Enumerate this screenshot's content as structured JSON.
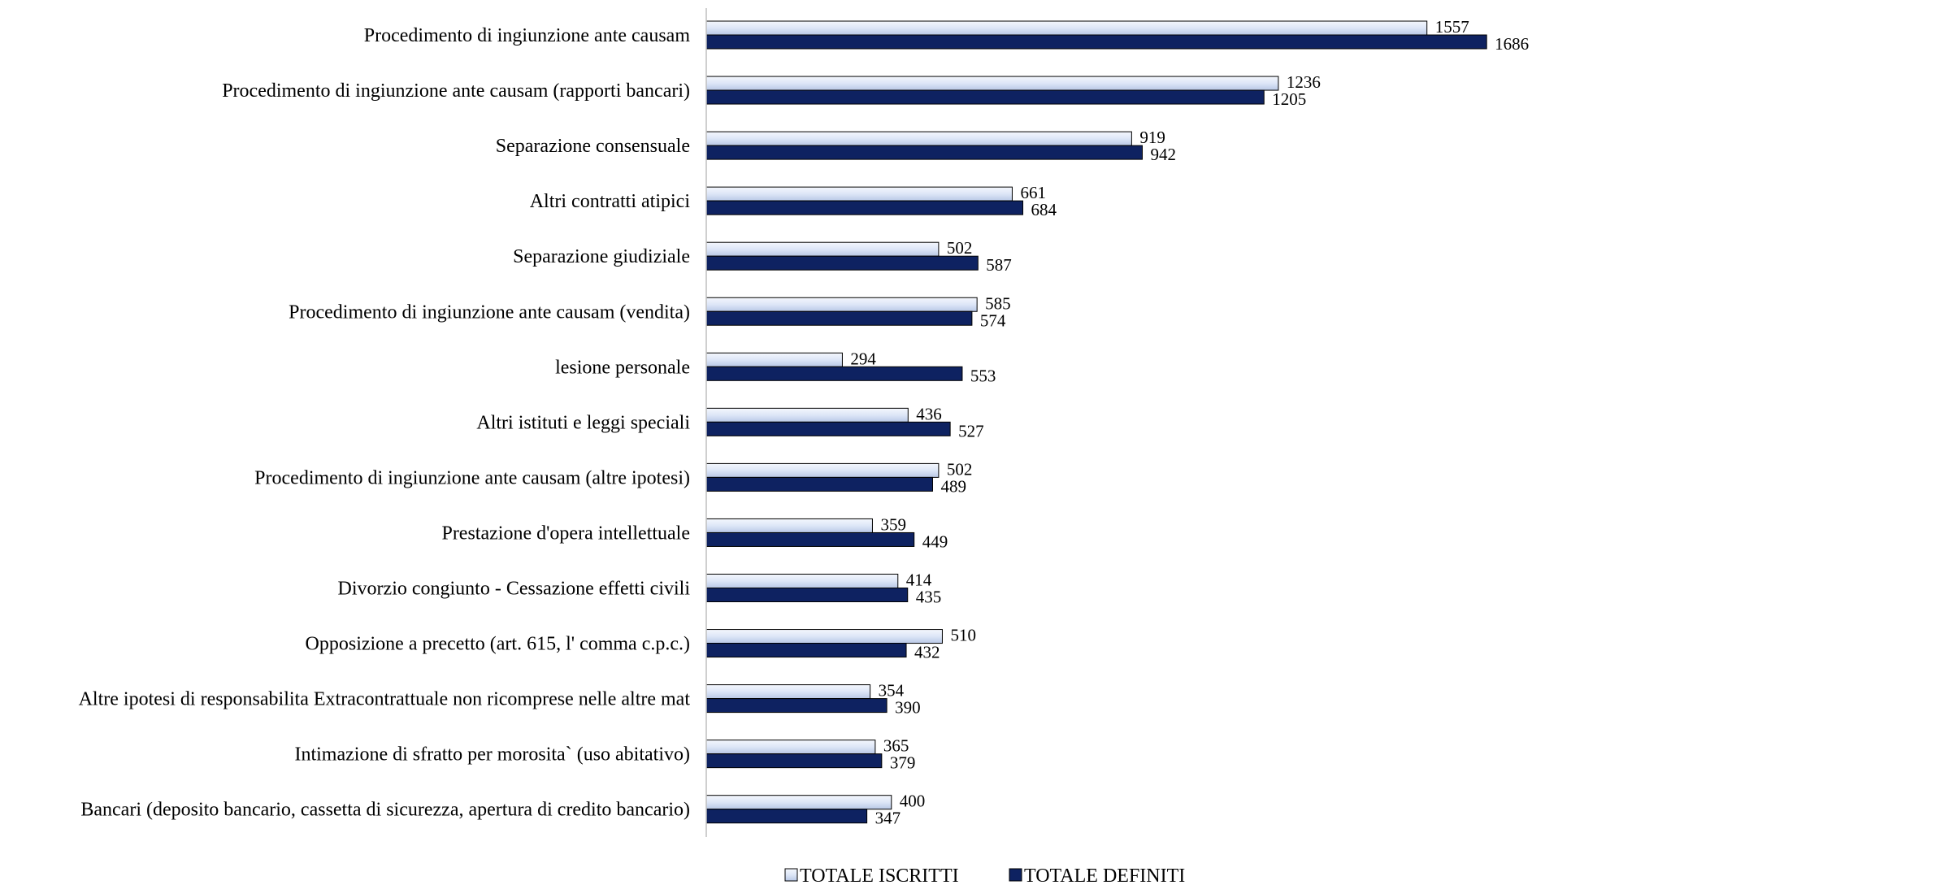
{
  "chart_data": {
    "type": "bar",
    "orientation": "horizontal",
    "categories": [
      "Procedimento di ingiunzione ante causam",
      "Procedimento di ingiunzione ante causam (rapporti bancari)",
      "Separazione consensuale",
      "Altri contratti atipici",
      "Separazione giudiziale",
      "Procedimento di ingiunzione ante causam (vendita)",
      "lesione personale",
      "Altri istituti e leggi speciali",
      "Procedimento di ingiunzione ante causam (altre ipotesi)",
      "Prestazione d'opera intellettuale",
      "Divorzio congiunto -  Cessazione effetti civili",
      "Opposizione a precetto (art. 615, l' comma c.p.c.)",
      "Altre ipotesi di responsabilita Extracontrattuale non ricomprese nelle altre mat",
      "Intimazione di sfratto per morosita` (uso abitativo)",
      "Bancari (deposito bancario, cassetta di sicurezza, apertura di credito bancario)"
    ],
    "series": [
      {
        "name": "TOTALE ISCRITTI",
        "color": "#dde6f7",
        "values": [
          1557,
          1236,
          919,
          661,
          502,
          585,
          294,
          436,
          502,
          359,
          414,
          510,
          354,
          365,
          400
        ]
      },
      {
        "name": "TOTALE DEFINITI",
        "color": "#0e2261",
        "values": [
          1686,
          1205,
          942,
          684,
          587,
          574,
          553,
          527,
          489,
          449,
          435,
          432,
          390,
          379,
          347
        ]
      }
    ],
    "xlim": [
      0,
      1750
    ],
    "grid": false,
    "legend": "bottom-center"
  }
}
